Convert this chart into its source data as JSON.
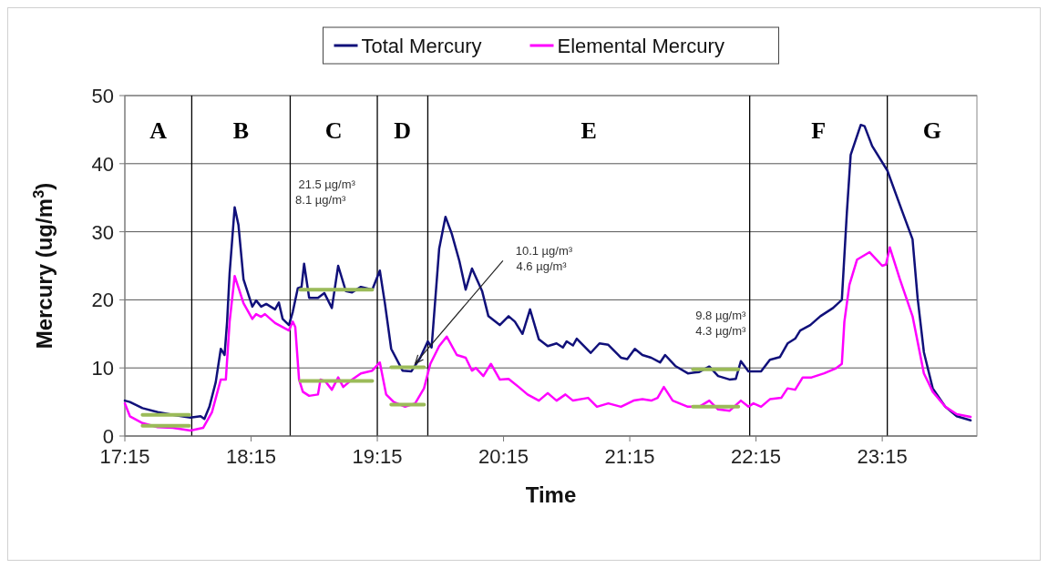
{
  "chart_data": {
    "type": "line",
    "xlabel": "Time",
    "ylabel": "Mercury (ug/m$^{3}$)",
    "xlim": [
      17.25,
      24.0
    ],
    "xticks": [
      {
        "value": 17.25,
        "label": "17:15"
      },
      {
        "value": 18.25,
        "label": "18:15"
      },
      {
        "value": 19.25,
        "label": "19:15"
      },
      {
        "value": 20.25,
        "label": "20:15"
      },
      {
        "value": 21.25,
        "label": "21:15"
      },
      {
        "value": 22.25,
        "label": "22:15"
      },
      {
        "value": 23.25,
        "label": "23:15"
      }
    ],
    "ylim": [
      0,
      50
    ],
    "yticks": [
      0,
      10,
      20,
      30,
      40,
      50
    ],
    "grid": "y",
    "legend": "top",
    "line_style": "solid",
    "marker": "none",
    "series": [
      {
        "name": "Total Mercury",
        "color": "#10107a",
        "x": [
          17.25,
          17.29,
          17.39,
          17.51,
          17.63,
          17.77,
          17.85,
          17.88,
          17.92,
          17.97,
          18.01,
          18.04,
          18.06,
          18.08,
          18.12,
          18.15,
          18.19,
          18.26,
          18.29,
          18.33,
          18.37,
          18.44,
          18.47,
          18.5,
          18.55,
          18.58,
          18.62,
          18.65,
          18.67,
          18.71,
          18.78,
          18.83,
          18.89,
          18.94,
          19.0,
          19.05,
          19.12,
          19.21,
          19.27,
          19.31,
          19.36,
          19.45,
          19.52,
          19.59,
          19.65,
          19.68,
          19.74,
          19.79,
          19.84,
          19.9,
          19.95,
          20.0,
          20.08,
          20.13,
          20.22,
          20.29,
          20.34,
          20.4,
          20.46,
          20.53,
          20.6,
          20.67,
          20.72,
          20.75,
          20.8,
          20.83,
          20.94,
          21.01,
          21.08,
          21.18,
          21.23,
          21.29,
          21.35,
          21.42,
          21.49,
          21.53,
          21.61,
          21.71,
          21.8,
          21.88,
          21.95,
          22.04,
          22.09,
          22.13,
          22.19,
          22.29,
          22.36,
          22.44,
          22.5,
          22.56,
          22.6,
          22.68,
          22.76,
          22.86,
          22.93,
          22.97,
          23.0,
          23.08,
          23.11,
          23.17,
          23.29,
          23.41,
          23.49,
          23.53,
          23.58,
          23.65,
          23.75,
          23.84,
          23.95
        ],
        "values": [
          5.2,
          5.0,
          4.1,
          3.5,
          3.1,
          2.7,
          2.9,
          2.5,
          4.3,
          7.9,
          12.8,
          11.9,
          16.8,
          23.9,
          33.6,
          31.0,
          23.0,
          19.0,
          19.9,
          19.0,
          19.4,
          18.6,
          19.6,
          17.2,
          16.3,
          18.2,
          21.7,
          21.9,
          25.3,
          20.3,
          20.3,
          21.0,
          18.8,
          25.0,
          21.3,
          21.1,
          21.9,
          21.5,
          24.3,
          19.5,
          12.8,
          9.6,
          9.5,
          11.5,
          13.9,
          13.0,
          27.5,
          32.2,
          29.7,
          25.7,
          21.5,
          24.6,
          21.3,
          17.6,
          16.3,
          17.6,
          16.8,
          15.0,
          18.6,
          14.2,
          13.2,
          13.6,
          13.0,
          13.9,
          13.3,
          14.3,
          12.2,
          13.6,
          13.4,
          11.5,
          11.3,
          12.8,
          11.9,
          11.5,
          10.8,
          11.9,
          10.3,
          9.2,
          9.4,
          10.2,
          8.8,
          8.3,
          8.4,
          11.0,
          9.5,
          9.5,
          11.2,
          11.6,
          13.6,
          14.3,
          15.5,
          16.3,
          17.6,
          18.8,
          20.0,
          32.9,
          41.3,
          45.7,
          45.5,
          42.6,
          39.0,
          32.9,
          28.9,
          20.3,
          12.3,
          7.0,
          4.3,
          2.9,
          2.3
        ]
      },
      {
        "name": "Elemental Mercury",
        "color": "#ff00ff",
        "x": [
          17.25,
          17.29,
          17.39,
          17.51,
          17.63,
          17.77,
          17.87,
          17.94,
          18.01,
          18.05,
          18.08,
          18.12,
          18.19,
          18.26,
          18.29,
          18.33,
          18.36,
          18.44,
          18.55,
          18.58,
          18.6,
          18.63,
          18.66,
          18.71,
          18.78,
          18.8,
          18.84,
          18.89,
          18.94,
          18.98,
          19.05,
          19.12,
          19.21,
          19.27,
          19.32,
          19.38,
          19.47,
          19.55,
          19.62,
          19.67,
          19.74,
          19.8,
          19.88,
          19.95,
          20.0,
          20.03,
          20.09,
          20.15,
          20.22,
          20.29,
          20.37,
          20.44,
          20.53,
          20.6,
          20.67,
          20.74,
          20.8,
          20.92,
          20.99,
          21.08,
          21.18,
          21.28,
          21.35,
          21.42,
          21.47,
          21.52,
          21.59,
          21.71,
          21.8,
          21.88,
          21.95,
          22.04,
          22.13,
          22.19,
          22.23,
          22.29,
          22.36,
          22.45,
          22.5,
          22.56,
          22.62,
          22.69,
          22.79,
          22.88,
          22.93,
          22.95,
          22.99,
          23.05,
          23.15,
          23.25,
          23.28,
          23.31,
          23.39,
          23.49,
          23.58,
          23.65,
          23.75,
          23.84,
          23.95
        ],
        "values": [
          4.8,
          2.9,
          1.9,
          1.3,
          1.2,
          0.8,
          1.2,
          3.5,
          8.3,
          8.3,
          16.8,
          23.5,
          19.5,
          17.2,
          17.9,
          17.5,
          17.9,
          16.6,
          15.5,
          16.8,
          16.0,
          8.3,
          6.5,
          5.9,
          6.1,
          8.3,
          8.0,
          6.8,
          8.6,
          7.2,
          8.3,
          9.2,
          9.6,
          10.8,
          6.1,
          5.0,
          4.3,
          4.8,
          7.0,
          10.6,
          13.2,
          14.6,
          11.9,
          11.5,
          9.6,
          10.0,
          8.8,
          10.6,
          8.3,
          8.4,
          7.2,
          6.1,
          5.2,
          6.3,
          5.2,
          6.1,
          5.2,
          5.6,
          4.3,
          4.8,
          4.3,
          5.2,
          5.4,
          5.2,
          5.6,
          7.2,
          5.2,
          4.3,
          4.3,
          5.2,
          3.9,
          3.7,
          5.2,
          4.3,
          4.8,
          4.3,
          5.4,
          5.6,
          7.0,
          6.8,
          8.6,
          8.6,
          9.2,
          9.9,
          10.6,
          16.8,
          22.2,
          25.9,
          27.0,
          25.0,
          25.2,
          27.7,
          23.0,
          17.6,
          9.2,
          6.5,
          4.3,
          3.2,
          2.8
        ]
      },
      {
        "color": "#9bbb59",
        "x": [
          17.39,
          17.76,
          17.765,
          18.64,
          19.21,
          19.215,
          19.36,
          19.62,
          19.625,
          21.75,
          22.11
        ],
        "values": [
          3.1,
          3.1,
          null,
          21.5,
          21.5,
          null,
          10.1,
          10.1,
          null,
          9.8,
          9.8
        ]
      },
      {
        "color": "#9bbb59",
        "x": [
          17.39,
          17.76,
          17.765,
          18.64,
          19.21,
          19.215,
          19.36,
          19.62,
          19.625,
          21.75,
          22.11
        ],
        "values": [
          1.5,
          1.5,
          null,
          8.1,
          8.1,
          null,
          4.6,
          4.6,
          null,
          4.3,
          4.3
        ]
      }
    ],
    "ref_lines": [
      {
        "axis": "x",
        "value": 17.78,
        "color": "#000000"
      },
      {
        "axis": "x",
        "value": 18.56,
        "color": "#000000"
      },
      {
        "axis": "x",
        "value": 19.25,
        "color": "#000000"
      },
      {
        "axis": "x",
        "value": 19.65,
        "color": "#000000"
      },
      {
        "axis": "x",
        "value": 22.2,
        "color": "#000000"
      },
      {
        "axis": "x",
        "value": 23.29,
        "color": "#000000"
      }
    ],
    "annotations": [
      "A",
      "B",
      "C",
      "D",
      "E",
      "F",
      "G",
      "21.5 µg/m³",
      "8.1 µg/m³",
      {
        "text": "10.1 µg/m³",
        "x": 19.55,
        "y": 10.1
      },
      "4.6 µg/m³",
      "9.8 µg/m³",
      "4.3 µg/m³"
    ]
  }
}
